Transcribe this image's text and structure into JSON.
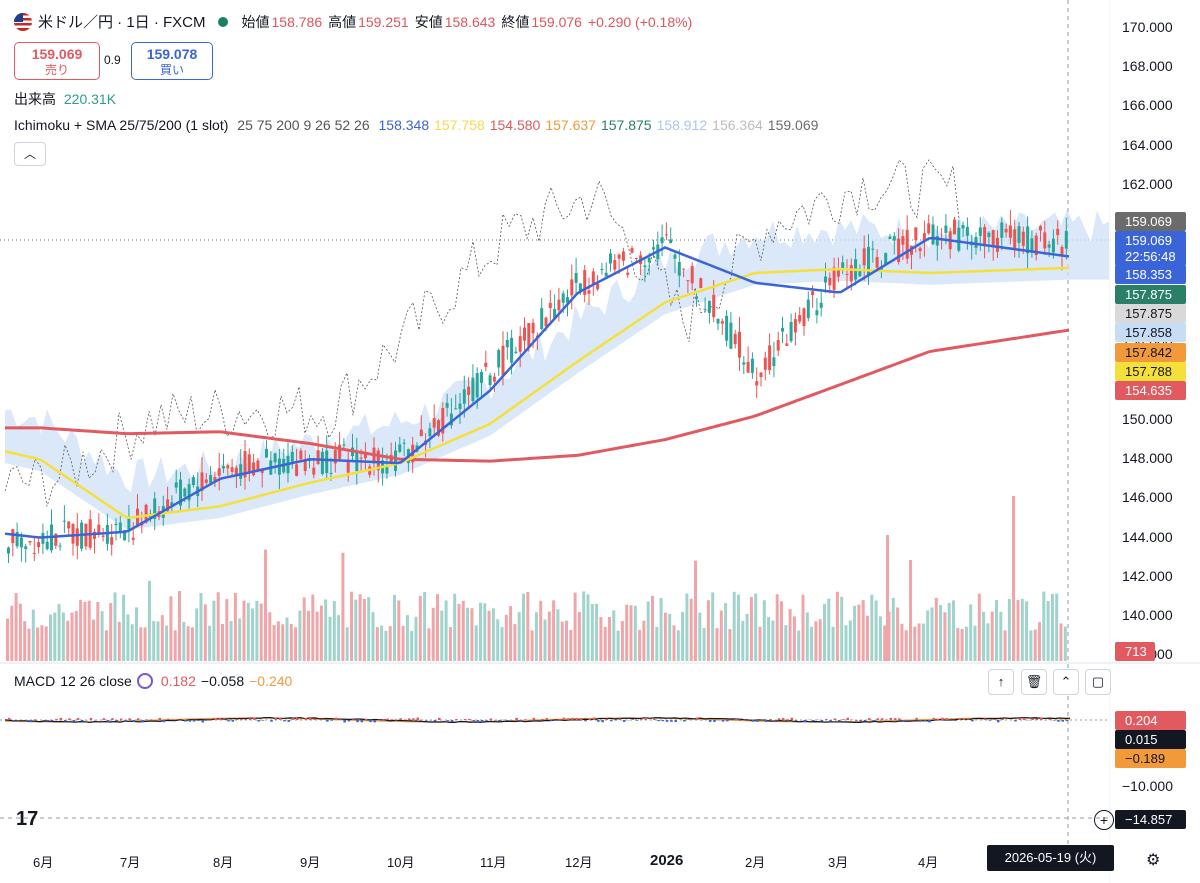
{
  "header": {
    "symbol": "米ドル／円 · 1日 · FXCM",
    "open_label": "始値",
    "open": "158.786",
    "high_label": "高値",
    "high": "159.251",
    "low_label": "安値",
    "low": "158.643",
    "close_label": "終値",
    "close": "159.076",
    "change": "+0.290 (+0.18%)"
  },
  "trade": {
    "sell_price": "159.069",
    "sell_label": "売り",
    "spread": "0.9",
    "buy_price": "159.078",
    "buy_label": "買い"
  },
  "volume": {
    "label": "出来高",
    "value": "220.31K"
  },
  "indicator": {
    "name": "Ichimoku + SMA 25/75/200 (1 slot)",
    "params": "25 75 200 9 26 52 26",
    "values": [
      "158.348",
      "157.758",
      "154.580",
      "157.637",
      "157.875",
      "158.912",
      "156.364",
      "159.069"
    ],
    "colors": [
      "#3a64d8",
      "#f5d94a",
      "#e05a60",
      "#f29a3a",
      "#2a7f6a",
      "#a9c7ee",
      "#bdbdbd",
      "#6b6b6b"
    ]
  },
  "macd": {
    "label": "MACD",
    "params": "12 26 close",
    "v1": "0.182",
    "v2": "−0.058",
    "v3": "−0.240",
    "colors": [
      "#e05a60",
      "#131722",
      "#f29a3a"
    ]
  },
  "price_axis": [
    "170.000",
    "168.000",
    "166.000",
    "164.000",
    "162.000",
    "160.000",
    "158.000",
    "156.000",
    "154.000",
    "152.000",
    "150.000",
    "148.000",
    "146.000",
    "144.000",
    "142.000",
    "140.000",
    "138.000"
  ],
  "price_labels": [
    {
      "text": "159.069",
      "bg": "#6b6b6b",
      "fg": "#ffffff"
    },
    {
      "text": "159.069",
      "bg": "#3a64d8",
      "fg": "#ffffff"
    },
    {
      "text": "22:56:48",
      "bg": "#3a64d8",
      "fg": "#ffffff"
    },
    {
      "text": "158.353",
      "bg": "#3a64d8",
      "fg": "#ffffff"
    },
    {
      "text": "157.875",
      "bg": "#2a7f6a",
      "fg": "#ffffff"
    },
    {
      "text": "157.875",
      "bg": "#d9d9d9",
      "fg": "#131722"
    },
    {
      "text": "157.858",
      "bg": "#c7dcf5",
      "fg": "#131722"
    },
    {
      "text": "157.842",
      "bg": "#f29a3a",
      "fg": "#131722"
    },
    {
      "text": "157.788",
      "bg": "#f5e03a",
      "fg": "#131722"
    },
    {
      "text": "154.635",
      "bg": "#e05a60",
      "fg": "#ffffff"
    }
  ],
  "volume_label": {
    "text": "713",
    "bg": "#e05a60",
    "fg": "#ffffff"
  },
  "macd_axis": [
    "−10.000"
  ],
  "macd_labels": [
    {
      "text": "0.204",
      "bg": "#e05a60",
      "fg": "#ffffff"
    },
    {
      "text": "0.015",
      "bg": "#131722",
      "fg": "#ffffff"
    },
    {
      "text": "−0.189",
      "bg": "#f29a3a",
      "fg": "#131722"
    }
  ],
  "crosshair_value": "−14.857",
  "x_axis": [
    "6月",
    "7月",
    "8月",
    "9月",
    "10月",
    "11月",
    "12月",
    "2026",
    "2月",
    "3月",
    "4月"
  ],
  "crosshair_date": "2026-05-19 (火)",
  "toolbar_icons": [
    "arrow-up-icon",
    "trash-icon",
    "collapse-icon",
    "fullscreen-icon"
  ],
  "chart_data": {
    "type": "candlestick",
    "ylim": [
      137,
      171
    ],
    "x": [
      "6月",
      "7月",
      "8月",
      "9月",
      "10月",
      "11月",
      "12月",
      "2026",
      "2月",
      "3月",
      "4月",
      "2026-05-19"
    ],
    "series": [
      {
        "name": "close",
        "values": [
          144.0,
          144.5,
          147.5,
          148.0,
          148.0,
          152.5,
          157.0,
          159.0,
          152.5,
          157.5,
          159.5,
          159.07
        ]
      },
      {
        "name": "25",
        "values": [
          144.0,
          144.3,
          147.0,
          148.0,
          147.8,
          151.5,
          156.5,
          158.8,
          157.0,
          156.5,
          159.3,
          158.35
        ]
      },
      {
        "name": "75",
        "values": [
          148.0,
          145.0,
          145.6,
          146.8,
          147.8,
          149.8,
          153.0,
          156.0,
          157.5,
          157.7,
          157.5,
          157.76
        ]
      },
      {
        "name": "200",
        "values": [
          149.6,
          149.3,
          149.4,
          148.8,
          148.0,
          147.9,
          148.2,
          149.0,
          150.2,
          151.8,
          153.5,
          154.58
        ]
      }
    ],
    "macd": {
      "values": [
        0.182,
        -0.058,
        -0.24
      ]
    }
  }
}
